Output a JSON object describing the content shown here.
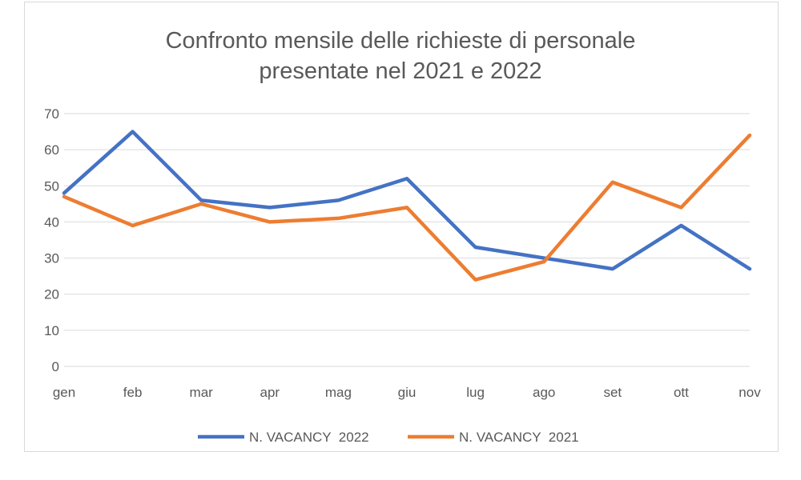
{
  "chart_data": {
    "type": "line",
    "title_lines": [
      "Confronto mensile delle richieste di personale",
      "presentate nel 2021 e 2022"
    ],
    "categories": [
      "gen",
      "feb",
      "mar",
      "apr",
      "mag",
      "giu",
      "lug",
      "ago",
      "set",
      "ott",
      "nov"
    ],
    "ylim": [
      0,
      70
    ],
    "yticks": [
      0,
      10,
      20,
      30,
      40,
      50,
      60,
      70
    ],
    "grid": true,
    "legend_position": "bottom",
    "series": [
      {
        "name": "N. VACANCY  2022",
        "color": "#4472C4",
        "values": [
          48,
          65,
          46,
          44,
          46,
          52,
          33,
          30,
          27,
          39,
          27
        ]
      },
      {
        "name": "N. VACANCY  2021",
        "color": "#ED7D31",
        "values": [
          47,
          39,
          45,
          40,
          41,
          44,
          24,
          29,
          51,
          44,
          64
        ]
      }
    ]
  }
}
